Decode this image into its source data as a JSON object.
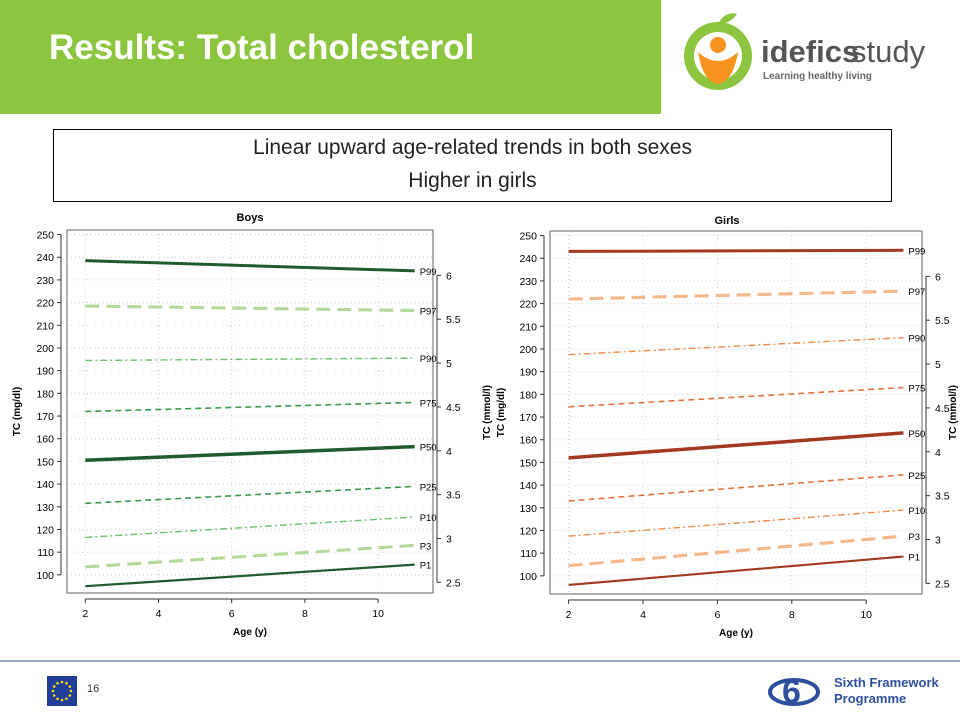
{
  "slide": {
    "title": "Results: Total cholesterol",
    "subtitle_lines": [
      "Linear upward age-related trends in both sexes",
      "Higher in girls"
    ],
    "page_number": "16"
  },
  "logo": {
    "brand_a": "idefics",
    "brand_b": "study",
    "tagline": "Learning healthy living"
  },
  "footer": {
    "fp6_line1": "Sixth Framework",
    "fp6_line2": "Programme"
  },
  "colors": {
    "header_green": "#8cc63f",
    "boys_dark": "#1e5c2e",
    "boys_light": "#b5d99c",
    "boys_medium": "#3a9a4c",
    "girls_dark": "#a33a1f",
    "girls_light": "#f5b88a",
    "girls_medium": "#e3743f"
  },
  "chart_data": [
    {
      "type": "line",
      "title": "Boys",
      "xlabel": "Age (y)",
      "ylabel": "TC (mg/dl)",
      "ylabel_right": "",
      "x": [
        2,
        11
      ],
      "xlim": [
        1.5,
        11.5
      ],
      "ylim": [
        92,
        252
      ],
      "xticks": [
        2,
        4,
        6,
        8,
        10
      ],
      "yticks": [
        100,
        110,
        120,
        130,
        140,
        150,
        160,
        170,
        180,
        190,
        200,
        210,
        220,
        230,
        240,
        250
      ],
      "yticks_right": [
        2.5,
        3,
        3.5,
        4,
        4.5,
        5,
        5.5,
        6
      ],
      "mmol_factor": 38.67,
      "grid": true,
      "series": [
        {
          "name": "P99",
          "values": [
            238.5,
            234
          ],
          "style": "solid",
          "color": "#1e5c2e",
          "width": 3
        },
        {
          "name": "P97",
          "values": [
            218.5,
            216.5
          ],
          "style": "longdash",
          "color": "#b5d99c",
          "width": 3.2
        },
        {
          "name": "P90",
          "values": [
            194.5,
            195.5
          ],
          "style": "dotdash",
          "color": "#6cc070",
          "width": 1.4
        },
        {
          "name": "P75",
          "values": [
            172,
            176
          ],
          "style": "dash",
          "color": "#3a9a4c",
          "width": 1.6
        },
        {
          "name": "P50",
          "values": [
            150.5,
            156.5
          ],
          "style": "solid",
          "color": "#1e5c2e",
          "width": 3.5
        },
        {
          "name": "P25",
          "values": [
            131.5,
            139
          ],
          "style": "dash",
          "color": "#3a9a4c",
          "width": 1.6
        },
        {
          "name": "P10",
          "values": [
            116.5,
            125.5
          ],
          "style": "dotdash",
          "color": "#6cc070",
          "width": 1.4
        },
        {
          "name": "P3",
          "values": [
            103.5,
            113
          ],
          "style": "longdash",
          "color": "#b5d99c",
          "width": 3.2
        },
        {
          "name": "P1",
          "values": [
            95,
            104.5
          ],
          "style": "solid",
          "color": "#1e5c2e",
          "width": 2.2
        }
      ]
    },
    {
      "type": "line",
      "title": "Girls",
      "xlabel": "Age (y)",
      "ylabel": "TC (mg/dl)",
      "ylabel_mid": "TC (mmol/l)",
      "ylabel_right": "TC (mmol/l)",
      "x": [
        2,
        11
      ],
      "xlim": [
        1.5,
        11.5
      ],
      "ylim": [
        92,
        252
      ],
      "xticks": [
        2,
        4,
        6,
        8,
        10
      ],
      "yticks": [
        100,
        110,
        120,
        130,
        140,
        150,
        160,
        170,
        180,
        190,
        200,
        210,
        220,
        230,
        240,
        250
      ],
      "yticks_right": [
        2.5,
        3,
        3.5,
        4,
        4.5,
        5,
        5.5,
        6
      ],
      "mmol_factor": 38.67,
      "grid": true,
      "series": [
        {
          "name": "P99",
          "values": [
            243,
            243.5
          ],
          "style": "solid",
          "color": "#a33a1f",
          "width": 3
        },
        {
          "name": "P97",
          "values": [
            222,
            225.5
          ],
          "style": "longdash",
          "color": "#f5b88a",
          "width": 3.2
        },
        {
          "name": "P90",
          "values": [
            197.5,
            205
          ],
          "style": "dotdash",
          "color": "#f08b4a",
          "width": 1.4
        },
        {
          "name": "P75",
          "values": [
            174.5,
            183
          ],
          "style": "dash",
          "color": "#e3743f",
          "width": 1.6
        },
        {
          "name": "P50",
          "values": [
            152,
            163
          ],
          "style": "solid",
          "color": "#a33a1f",
          "width": 3.5
        },
        {
          "name": "P25",
          "values": [
            133,
            144.5
          ],
          "style": "dash",
          "color": "#e3743f",
          "width": 1.6
        },
        {
          "name": "P10",
          "values": [
            117.5,
            129
          ],
          "style": "dotdash",
          "color": "#f08b4a",
          "width": 1.4
        },
        {
          "name": "P3",
          "values": [
            104.5,
            117.5
          ],
          "style": "longdash",
          "color": "#f5b88a",
          "width": 3.2
        },
        {
          "name": "P1",
          "values": [
            96,
            108.5
          ],
          "style": "solid",
          "color": "#a33a1f",
          "width": 2.2
        }
      ]
    }
  ]
}
